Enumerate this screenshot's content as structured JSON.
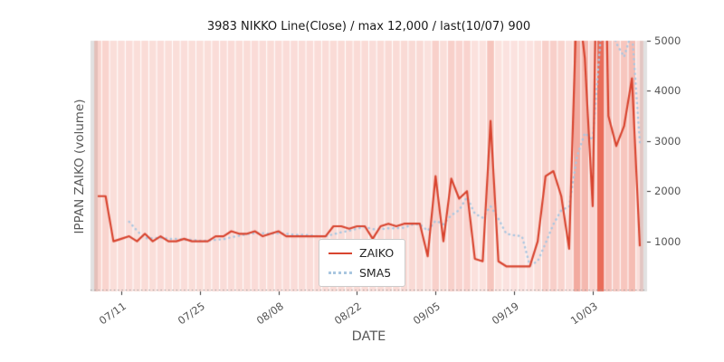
{
  "chart_data": {
    "type": "line",
    "title": "3983 NIKKO Line(Close) / max 12,000 / last(10/07) 900",
    "xlabel": "DATE",
    "ylabel": "IPPAN ZAIKO (volume)",
    "ylim": [
      0,
      5000
    ],
    "grid": false,
    "legend_position": "inside lower center",
    "x_tick_labels": [
      "07/11",
      "07/25",
      "08/08",
      "08/22",
      "09/05",
      "09/19",
      "10/03"
    ],
    "x_tick_indices": [
      3,
      13,
      23,
      33,
      43,
      53,
      63
    ],
    "y_tick_labels": [
      "1000",
      "2000",
      "3000",
      "4000",
      "5000"
    ],
    "y_tick_values": [
      1000,
      2000,
      3000,
      4000,
      5000
    ],
    "series": [
      {
        "name": "ZAIKO",
        "style": "solid",
        "color": "#d8442f",
        "values": [
          1900,
          1900,
          1000,
          1050,
          1100,
          1000,
          1150,
          1000,
          1100,
          1000,
          1000,
          1050,
          1000,
          1000,
          1000,
          1100,
          1100,
          1200,
          1150,
          1150,
          1200,
          1100,
          1150,
          1200,
          1100,
          1100,
          1100,
          1100,
          1100,
          1100,
          1300,
          1300,
          1250,
          1300,
          1300,
          1050,
          1300,
          1350,
          1300,
          1350,
          1350,
          1350,
          700,
          2300,
          1000,
          2250,
          1850,
          2000,
          650,
          600,
          3400,
          600,
          500,
          500,
          500,
          500,
          1000,
          2300,
          2400,
          1900,
          850,
          6000,
          4650,
          1700,
          12000,
          3500,
          2900,
          3300,
          4250,
          900
        ]
      },
      {
        "name": "SMA5",
        "style": "dotted",
        "color": "#a9c6e0",
        "derived_from": "5-period moving average of ZAIKO"
      }
    ],
    "annotations": {
      "max_value": 12000,
      "last_point": "last(10/07) 900",
      "values_above_5000_clipped_at_top": true
    },
    "background_bands": {
      "color": "#e86450",
      "alpha_min": 0.15,
      "alpha_max": 0.95,
      "intensity": "proportional to ZAIKO value",
      "edge_strip_color": "#dcdcdc"
    }
  }
}
